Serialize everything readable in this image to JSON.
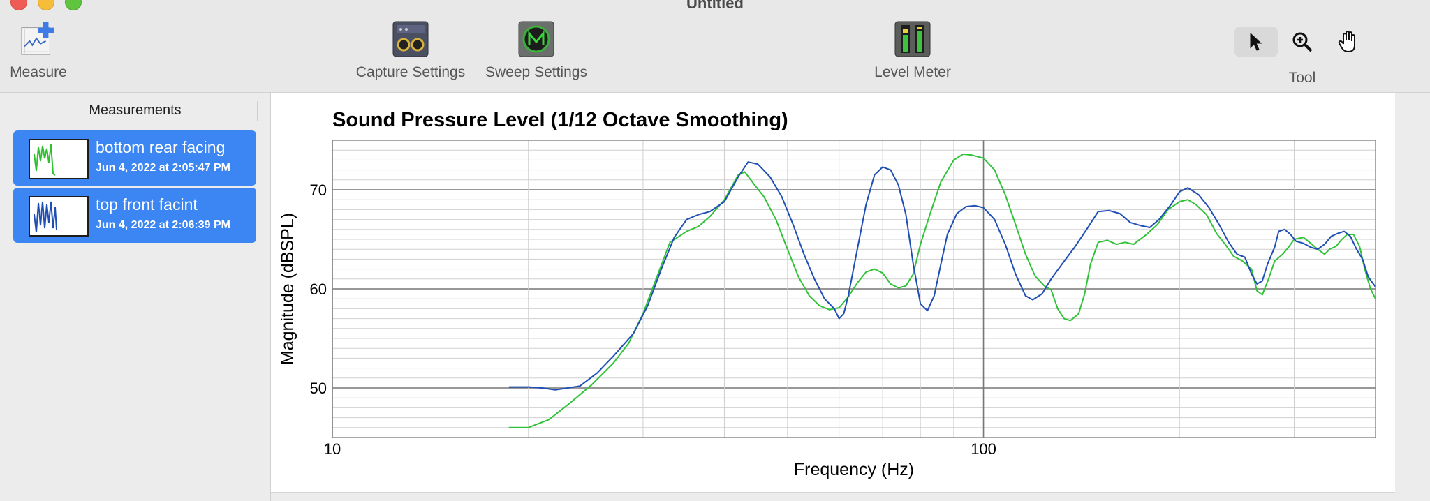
{
  "window": {
    "title": "Untitled"
  },
  "toolbar": {
    "measure_label": "Measure",
    "capture_label": "Capture Settings",
    "sweep_label": "Sweep Settings",
    "level_label": "Level Meter",
    "tool_label": "Tool",
    "icons": {
      "measure": "measure-plus-icon",
      "capture": "capture-settings-icon",
      "sweep": "sweep-settings-icon",
      "level": "level-meter-icon",
      "pointer": "pointer-arrow-icon",
      "zoom": "magnifier-plus-icon",
      "hand": "hand-icon"
    }
  },
  "sidebar": {
    "header": "Measurements",
    "items": [
      {
        "name": "bottom rear facing",
        "date": "Jun 4, 2022 at 2:05:47 PM",
        "thumb_color": "#2fbf2f"
      },
      {
        "name": "top front facint",
        "date": "Jun 4, 2022 at 2:06:39 PM",
        "thumb_color": "#1f4fb5"
      }
    ]
  },
  "colors": {
    "accent": "#3b86f3",
    "series_blue": "#1f4fb5",
    "series_green": "#32c23a"
  },
  "chart_data": {
    "type": "line",
    "title": "Sound Pressure Level (1/12 Octave Smoothing)",
    "xlabel": "Frequency (Hz)",
    "ylabel": "Magnitude (dBSPL)",
    "x_scale": "log",
    "xlim": [
      10,
      400
    ],
    "ylim": [
      45,
      75
    ],
    "x_ticks": [
      10,
      100
    ],
    "x_tick_labels": [
      "10",
      "100"
    ],
    "y_ticks": [
      50,
      60,
      70
    ],
    "y_tick_labels": [
      "50",
      "60",
      "70"
    ],
    "grid": true,
    "series": [
      {
        "color": "#32c23a",
        "points": [
          [
            18.7,
            46.0
          ],
          [
            20,
            46.0
          ],
          [
            21.5,
            46.8
          ],
          [
            23,
            48.3
          ],
          [
            25,
            50.3
          ],
          [
            27,
            52.5
          ],
          [
            28.5,
            54.5
          ],
          [
            30,
            57.5
          ],
          [
            31.5,
            61.2
          ],
          [
            33,
            64.7
          ],
          [
            35,
            65.8
          ],
          [
            36.5,
            66.3
          ],
          [
            38,
            67.3
          ],
          [
            40,
            69.0
          ],
          [
            42,
            71.5
          ],
          [
            43,
            71.8
          ],
          [
            44.5,
            70.5
          ],
          [
            46,
            69.3
          ],
          [
            48,
            67.0
          ],
          [
            50,
            64.0
          ],
          [
            52,
            61.2
          ],
          [
            54,
            59.3
          ],
          [
            56,
            58.3
          ],
          [
            58,
            57.9
          ],
          [
            60,
            58.1
          ],
          [
            62,
            59.2
          ],
          [
            64,
            60.6
          ],
          [
            66,
            61.7
          ],
          [
            68,
            62.0
          ],
          [
            70,
            61.6
          ],
          [
            72,
            60.5
          ],
          [
            74,
            60.1
          ],
          [
            76,
            60.3
          ],
          [
            78,
            61.5
          ],
          [
            80,
            64.5
          ],
          [
            83,
            67.8
          ],
          [
            86,
            70.8
          ],
          [
            90,
            73.0
          ],
          [
            93,
            73.6
          ],
          [
            96,
            73.5
          ],
          [
            100,
            73.2
          ],
          [
            104,
            72.0
          ],
          [
            108,
            69.5
          ],
          [
            112,
            66.5
          ],
          [
            116,
            63.5
          ],
          [
            120,
            61.3
          ],
          [
            124,
            60.3
          ],
          [
            127,
            59.9
          ],
          [
            130,
            58.0
          ],
          [
            133,
            57.0
          ],
          [
            136,
            56.8
          ],
          [
            140,
            57.5
          ],
          [
            143,
            59.5
          ],
          [
            146,
            62.5
          ],
          [
            150,
            64.7
          ],
          [
            155,
            64.9
          ],
          [
            160,
            64.5
          ],
          [
            165,
            64.7
          ],
          [
            170,
            64.5
          ],
          [
            178,
            65.5
          ],
          [
            185,
            66.5
          ],
          [
            192,
            68.0
          ],
          [
            200,
            68.8
          ],
          [
            206,
            69.0
          ],
          [
            212,
            68.5
          ],
          [
            220,
            67.5
          ],
          [
            228,
            65.6
          ],
          [
            235,
            64.5
          ],
          [
            242,
            63.3
          ],
          [
            250,
            62.8
          ],
          [
            258,
            62.0
          ],
          [
            263,
            59.8
          ],
          [
            268,
            59.4
          ],
          [
            274,
            61.0
          ],
          [
            280,
            62.8
          ],
          [
            288,
            63.5
          ],
          [
            294,
            64.2
          ],
          [
            300,
            65.0
          ],
          [
            310,
            65.2
          ],
          [
            318,
            64.6
          ],
          [
            326,
            64.0
          ],
          [
            334,
            63.5
          ],
          [
            340,
            64.0
          ],
          [
            348,
            64.3
          ],
          [
            355,
            65.0
          ],
          [
            362,
            65.5
          ],
          [
            370,
            65.5
          ],
          [
            378,
            64.3
          ],
          [
            385,
            62.0
          ],
          [
            393,
            60.0
          ],
          [
            400,
            59.0
          ]
        ]
      },
      {
        "color": "#1f4fb5",
        "points": [
          [
            18.7,
            50.1
          ],
          [
            20,
            50.1
          ],
          [
            21,
            50.0
          ],
          [
            22,
            49.8
          ],
          [
            23,
            50.0
          ],
          [
            24,
            50.2
          ],
          [
            25.5,
            51.5
          ],
          [
            27,
            53.2
          ],
          [
            29,
            55.5
          ],
          [
            30.5,
            58.3
          ],
          [
            32,
            62.0
          ],
          [
            33.5,
            65.2
          ],
          [
            35,
            67.0
          ],
          [
            36.5,
            67.5
          ],
          [
            38,
            67.8
          ],
          [
            40,
            68.8
          ],
          [
            42,
            71.3
          ],
          [
            43.5,
            72.8
          ],
          [
            45,
            72.6
          ],
          [
            47,
            71.3
          ],
          [
            49,
            69.3
          ],
          [
            51,
            66.5
          ],
          [
            53,
            63.5
          ],
          [
            55,
            61.0
          ],
          [
            57,
            59.0
          ],
          [
            59,
            58.0
          ],
          [
            60,
            57.0
          ],
          [
            61,
            57.5
          ],
          [
            62,
            59.3
          ],
          [
            64,
            64.0
          ],
          [
            66,
            68.5
          ],
          [
            68,
            71.5
          ],
          [
            70,
            72.3
          ],
          [
            72,
            72.0
          ],
          [
            74,
            70.5
          ],
          [
            76,
            67.5
          ],
          [
            78,
            62.5
          ],
          [
            80,
            58.5
          ],
          [
            82,
            57.8
          ],
          [
            84,
            59.3
          ],
          [
            86,
            62.5
          ],
          [
            88,
            65.5
          ],
          [
            91,
            67.6
          ],
          [
            94,
            68.3
          ],
          [
            97,
            68.4
          ],
          [
            100,
            68.2
          ],
          [
            104,
            67.0
          ],
          [
            108,
            64.5
          ],
          [
            112,
            61.5
          ],
          [
            116,
            59.3
          ],
          [
            119,
            58.9
          ],
          [
            123,
            59.5
          ],
          [
            127,
            61.0
          ],
          [
            132,
            62.5
          ],
          [
            138,
            64.2
          ],
          [
            144,
            66.0
          ],
          [
            150,
            67.8
          ],
          [
            156,
            67.9
          ],
          [
            162,
            67.6
          ],
          [
            168,
            66.7
          ],
          [
            174,
            66.4
          ],
          [
            180,
            66.2
          ],
          [
            186,
            67.0
          ],
          [
            194,
            68.5
          ],
          [
            200,
            69.8
          ],
          [
            206,
            70.2
          ],
          [
            214,
            69.5
          ],
          [
            222,
            68.2
          ],
          [
            230,
            66.5
          ],
          [
            238,
            64.7
          ],
          [
            245,
            63.5
          ],
          [
            252,
            63.2
          ],
          [
            258,
            61.5
          ],
          [
            263,
            60.5
          ],
          [
            268,
            60.8
          ],
          [
            273,
            62.5
          ],
          [
            280,
            64.2
          ],
          [
            284,
            65.8
          ],
          [
            290,
            66.0
          ],
          [
            296,
            65.5
          ],
          [
            302,
            64.8
          ],
          [
            310,
            64.6
          ],
          [
            318,
            64.2
          ],
          [
            326,
            64.0
          ],
          [
            334,
            64.5
          ],
          [
            342,
            65.3
          ],
          [
            350,
            65.6
          ],
          [
            358,
            65.8
          ],
          [
            366,
            65.3
          ],
          [
            374,
            64.0
          ],
          [
            382,
            63.0
          ],
          [
            390,
            61.2
          ],
          [
            400,
            60.2
          ]
        ]
      }
    ]
  }
}
